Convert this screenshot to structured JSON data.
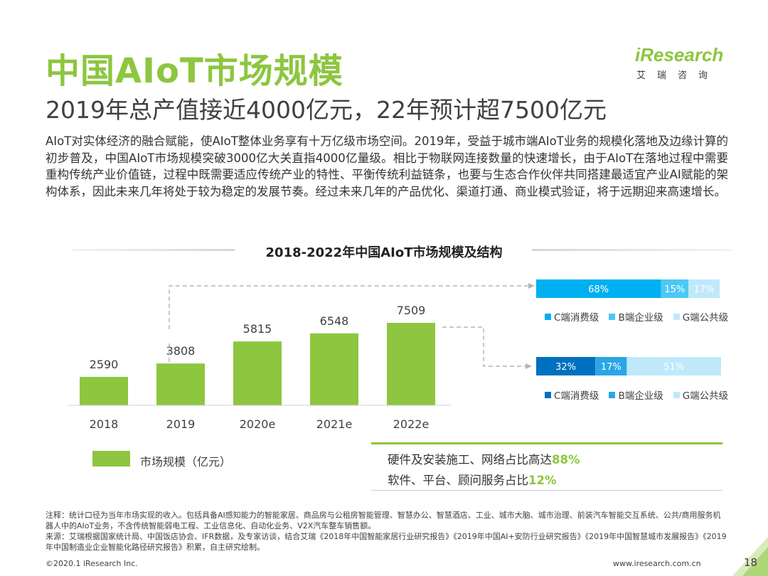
{
  "header": {
    "title": "中国AIoT市场规模",
    "subtitle": "2019年总产值接近4000亿元，22年预计超7500亿元",
    "logo_text": "iResearch",
    "logo_sub": "艾瑞咨询"
  },
  "intro": "AIoT对实体经济的融合赋能，使AIoT整体业务享有十万亿级市场空间。2019年，受益于城市端AIoT业务的规模化落地及边缘计算的初步普及，中国AIoT市场规模突破3000亿大关直指4000亿量级。相比于物联网连接数量的快速增长，由于AIoT在落地过程中需要重构传统产业价值链，过程中既需要适应传统产业的特性、平衡传统利益链条，也要与生态合作伙伴共同搭建最适宜产业AI赋能的架构体系，因此未来几年将处于较为稳定的发展节奏。经过未来几年的产品优化、渠道打通、商业模式验证，将于远期迎来高速增长。",
  "chart_data": [
    {
      "type": "bar",
      "title": "2018-2022年中国AIoT市场规模及结构",
      "categories": [
        "2018",
        "2019",
        "2020e",
        "2021e",
        "2022e"
      ],
      "values": [
        2590,
        3808,
        5815,
        6548,
        7509
      ],
      "series": [
        {
          "name": "市场规模（亿元）",
          "values": [
            2590,
            3808,
            5815,
            6548,
            7509
          ]
        }
      ],
      "color": "#8dc63f"
    },
    {
      "type": "bar",
      "stacked": true,
      "orientation": "horizontal",
      "applies_to": "2019",
      "categories": [
        "C端消费级",
        "B端企业级",
        "G端公共级"
      ],
      "values": [
        68,
        15,
        17
      ],
      "labels": [
        "68%",
        "15%",
        "17%"
      ],
      "colors": [
        "#00b0f0",
        "#4dc8f4",
        "#bfe9fb"
      ]
    },
    {
      "type": "bar",
      "stacked": true,
      "orientation": "horizontal",
      "applies_to": "2022e",
      "categories": [
        "C端消费级",
        "B端企业级",
        "G端公共级"
      ],
      "values": [
        32,
        17,
        51
      ],
      "labels": [
        "32%",
        "17%",
        "51%"
      ],
      "colors": [
        "#0070c0",
        "#2aa6e6",
        "#bfe9fb"
      ]
    }
  ],
  "legend": {
    "market_label": "市场规模（亿元）"
  },
  "stack_legend": [
    "C端消费级",
    "B端企业级",
    "G端公共级"
  ],
  "summary_box": {
    "line1_text": "硬件及安装施工、网络占比高达",
    "line1_pct": "88%",
    "line2_text": "软件、平台、顾问服务占比",
    "line2_pct": "12%"
  },
  "notes": {
    "note": "注释：统计口径为当年市场实现的收入。包括具备AI感知能力的智能家居、商品房与公租房智能管理、智慧办公、智慧酒店、工业、城市大脑、城市治理、前装汽车智能交互系统、公共/商用服务机器人中的AIoT业务，不含传统智能弱电工程、工业信息化、自动化业务、V2X汽车整车销售额。",
    "source": "来源：艾瑞根据国家统计局、中国饭店协会、IFR数据，及专家访谈，结合艾瑞《2018年中国智能家居行业研究报告》《2019年中国AI+安防行业研究报告》《2019年中国智慧城市发展报告》《2019年中国制造业企业智能化路径研究报告》积累，自主研究绘制。"
  },
  "footer": {
    "copyright": "©2020.1 iResearch Inc.",
    "url": "www.iresearch.com.cn",
    "page": "18"
  },
  "colors": {
    "accent": "#8dc63f",
    "text": "#404040"
  }
}
